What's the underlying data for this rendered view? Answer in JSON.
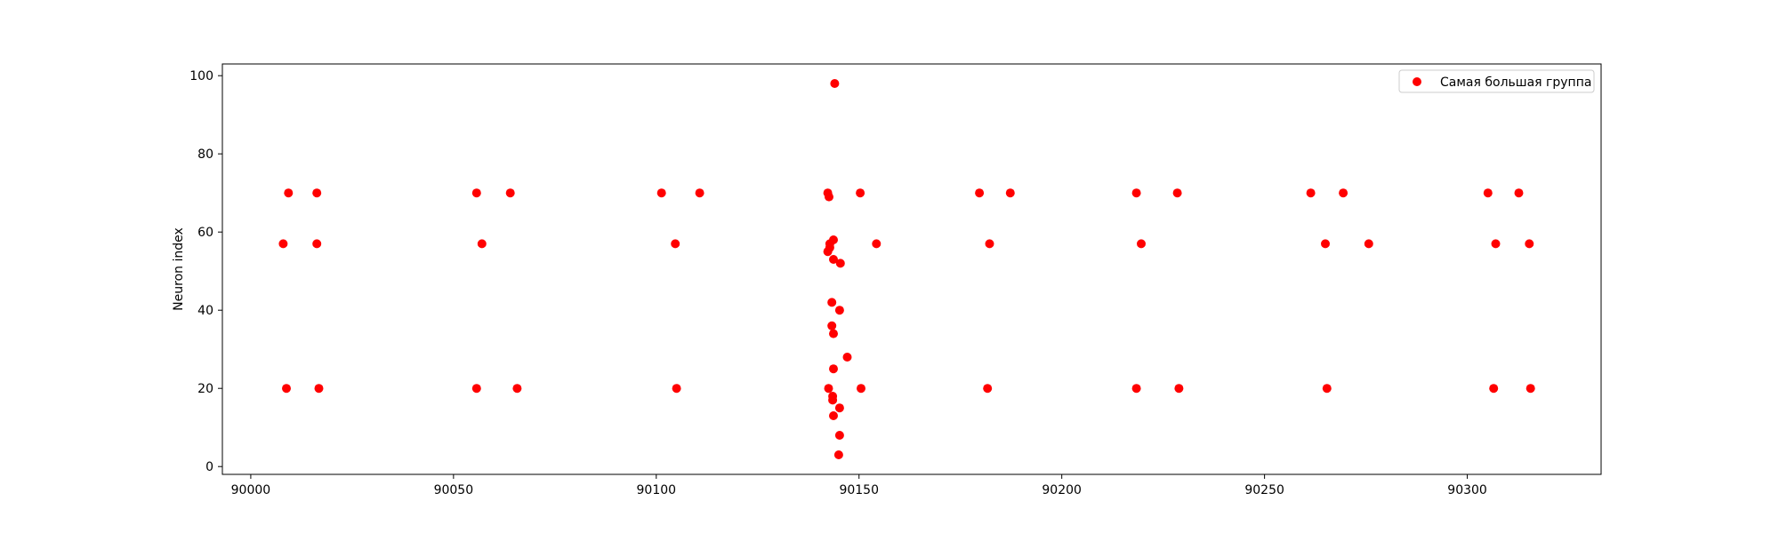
{
  "chart_data": {
    "type": "scatter",
    "title": "",
    "xlabel": "",
    "ylabel": "Neuron index",
    "xlim": [
      89993,
      90333
    ],
    "ylim": [
      -2,
      103
    ],
    "xticks": [
      90000,
      90050,
      90100,
      90150,
      90200,
      90250,
      90300
    ],
    "yticks": [
      0,
      20,
      40,
      60,
      80,
      100
    ],
    "grid": false,
    "legend_position": "top-right",
    "series": [
      {
        "name": "Самая большая группа",
        "color": "#ff0000",
        "points": [
          [
            90008,
            57
          ],
          [
            90008.8,
            20
          ],
          [
            90009.3,
            70
          ],
          [
            90016.3,
            70
          ],
          [
            90016.3,
            57
          ],
          [
            90016.8,
            20
          ],
          [
            90055.7,
            70
          ],
          [
            90055.7,
            20
          ],
          [
            90057,
            57
          ],
          [
            90064,
            70
          ],
          [
            90065.7,
            20
          ],
          [
            90101.3,
            70
          ],
          [
            90104.7,
            57
          ],
          [
            90105,
            20
          ],
          [
            90110.7,
            70
          ],
          [
            90142.3,
            70
          ],
          [
            90142.6,
            69
          ],
          [
            90142.3,
            55
          ],
          [
            90142.8,
            57
          ],
          [
            90142.8,
            56
          ],
          [
            90143.7,
            58
          ],
          [
            90144,
            98
          ],
          [
            90143.3,
            42
          ],
          [
            90143.3,
            36
          ],
          [
            90143.7,
            34
          ],
          [
            90143.7,
            25
          ],
          [
            90142.5,
            20
          ],
          [
            90143.5,
            18
          ],
          [
            90143.5,
            17
          ],
          [
            90143.7,
            13
          ],
          [
            90143.7,
            53
          ],
          [
            90145.4,
            52
          ],
          [
            90145.2,
            40
          ],
          [
            90147.1,
            28
          ],
          [
            90145.2,
            15
          ],
          [
            90145.2,
            8
          ],
          [
            90145,
            3
          ],
          [
            90150.3,
            70
          ],
          [
            90150.5,
            20
          ],
          [
            90154.3,
            57
          ],
          [
            90179.7,
            70
          ],
          [
            90181.7,
            20
          ],
          [
            90182.2,
            57
          ],
          [
            90187.3,
            70
          ],
          [
            90218.4,
            70
          ],
          [
            90218.4,
            20
          ],
          [
            90219.6,
            57
          ],
          [
            90228.5,
            70
          ],
          [
            90228.9,
            20
          ],
          [
            90261.4,
            70
          ],
          [
            90265,
            57
          ],
          [
            90265.4,
            20
          ],
          [
            90269.4,
            70
          ],
          [
            90275.7,
            57
          ],
          [
            90305.1,
            70
          ],
          [
            90306.5,
            20
          ],
          [
            90307,
            57
          ],
          [
            90312.7,
            70
          ],
          [
            90315.3,
            57
          ],
          [
            90315.6,
            20
          ]
        ]
      }
    ]
  }
}
